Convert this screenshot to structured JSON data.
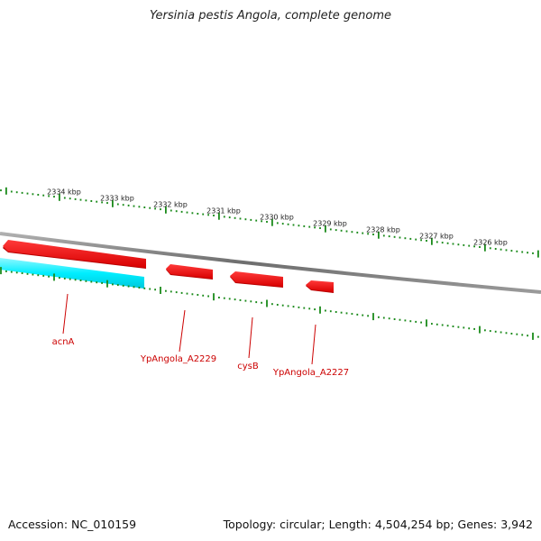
{
  "title": "Yersinia pestis Angola, complete genome",
  "accession": "Accession: NC_010159",
  "summary": "Topology: circular; Length: 4,504,254 bp; Genes: 3,942",
  "colors": {
    "backbone": "#808080",
    "tick": "#1a8a1a",
    "gene_forward": "#ff0000",
    "gene_reverse": "#00e5ee",
    "label": "#cc0000"
  },
  "kbp_labels": [
    "2334 kbp",
    "2333 kbp",
    "2332 kbp",
    "2331 kbp",
    "2330 kbp",
    "2329 kbp",
    "2328 kbp",
    "2327 kbp",
    "2326 kbp"
  ],
  "genes": [
    {
      "name": "acnA",
      "strand": "reverse"
    },
    {
      "name": "YpAngola_A2229",
      "strand": "reverse"
    },
    {
      "name": "cysB",
      "strand": "reverse"
    },
    {
      "name": "YpAngola_A2227",
      "strand": "reverse"
    },
    {
      "name": "",
      "strand": "forward"
    }
  ]
}
